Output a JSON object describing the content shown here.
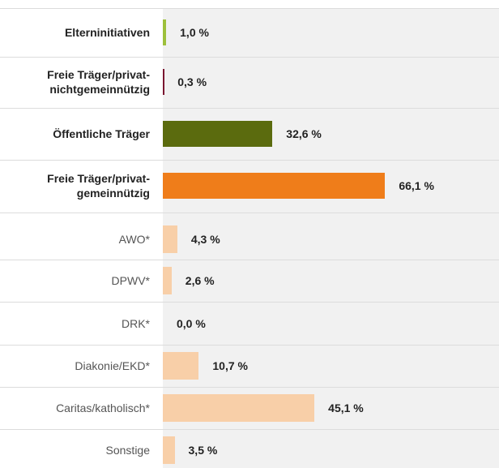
{
  "chart_data": {
    "type": "bar",
    "orientation": "horizontal",
    "categories": [
      "Elterninitiativen",
      "Freie Träger/privat-\nnichtgemeinnützig",
      "Öffentliche Träger",
      "Freie Träger/privat-\ngemeinnützig",
      "AWO*",
      "DPWV*",
      "DRK*",
      "Diakonie/EKD*",
      "Caritas/katholisch*",
      "Sonstige"
    ],
    "values": [
      1.0,
      0.3,
      32.6,
      66.1,
      4.3,
      2.6,
      0.0,
      10.7,
      45.1,
      3.5
    ],
    "value_labels": [
      "1,0 %",
      "0,3 %",
      "32,6 %",
      "66,1 %",
      "4,3 %",
      "2,6 %",
      "0,0 %",
      "10,7 %",
      "45,1 %",
      "3,5 %"
    ],
    "colors": [
      "#9dc03b",
      "#7a1630",
      "#5b6b0e",
      "#ef7d1a",
      "#f8cfa8",
      "#f8cfa8",
      "#f8cfa8",
      "#f8cfa8",
      "#f8cfa8",
      "#f8cfa8"
    ],
    "bold": [
      true,
      true,
      true,
      true,
      false,
      false,
      false,
      false,
      false,
      false
    ],
    "xlim": [
      0,
      100
    ]
  }
}
